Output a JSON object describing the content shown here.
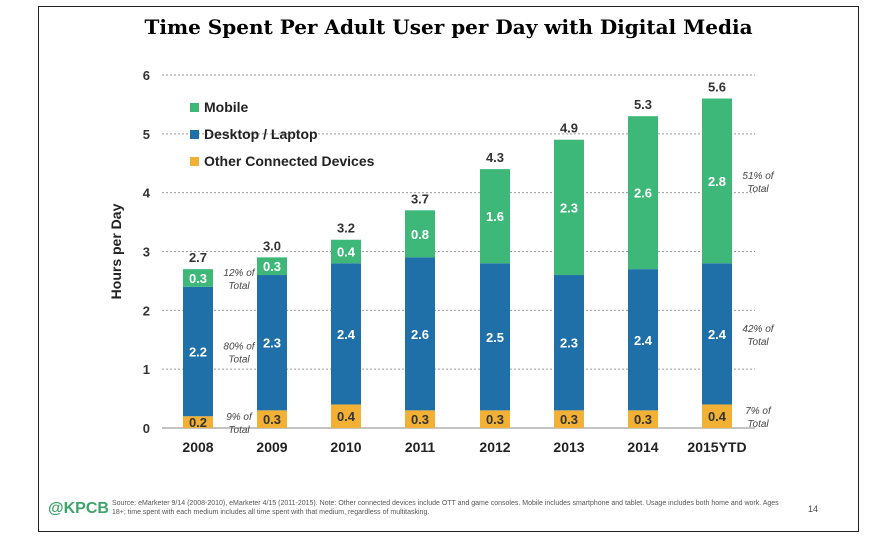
{
  "chart_data": {
    "type": "bar",
    "stacked": true,
    "title": "Time Spent Per Adult User per Day with Digital Media",
    "xlabel": "",
    "ylabel": "Hours per Day",
    "ylim": [
      0,
      6
    ],
    "yticks": [
      "0",
      "1",
      "2",
      "3",
      "4",
      "5",
      "6"
    ],
    "grid": true,
    "categories": [
      "2008",
      "2009",
      "2010",
      "2011",
      "2012",
      "2013",
      "2014",
      "2015YTD"
    ],
    "series": [
      {
        "name": "Other Connected Devices",
        "color": "#f2b134",
        "values": [
          0.2,
          0.3,
          0.4,
          0.3,
          0.3,
          0.3,
          0.3,
          0.4
        ],
        "labels": [
          "0.2",
          "0.3",
          "0.4",
          "0.3",
          "0.3",
          "0.3",
          "0.3",
          "0.4"
        ]
      },
      {
        "name": "Desktop / Laptop",
        "color": "#1f6fa9",
        "values": [
          2.2,
          2.3,
          2.4,
          2.6,
          2.5,
          2.3,
          2.4,
          2.4
        ],
        "labels": [
          "2.2",
          "2.3",
          "2.4",
          "2.6",
          "2.5",
          "2.3",
          "2.4",
          "2.4"
        ]
      },
      {
        "name": "Mobile",
        "color": "#3db879",
        "values": [
          0.3,
          0.3,
          0.4,
          0.8,
          1.6,
          2.3,
          2.6,
          2.8
        ],
        "labels": [
          "0.3",
          "0.3",
          "0.4",
          "0.8",
          "1.6",
          "2.3",
          "2.6",
          "2.8"
        ]
      }
    ],
    "totals": [
      "2.7",
      "3.0",
      "3.2",
      "3.7",
      "4.3",
      "4.9",
      "5.3",
      "5.6"
    ],
    "legend_order": [
      "Mobile",
      "Desktop / Laptop",
      "Other Connected Devices"
    ],
    "legend_position": "top-left",
    "annotations": [
      {
        "text_line1": "12% of",
        "text_line2": "Total",
        "category": "2008",
        "series": "Mobile"
      },
      {
        "text_line1": "80% of",
        "text_line2": "Total",
        "category": "2008",
        "series": "Desktop / Laptop"
      },
      {
        "text_line1": "9% of",
        "text_line2": "Total",
        "category": "2008",
        "series": "Other Connected Devices"
      },
      {
        "text_line1": "51% of",
        "text_line2": "Total",
        "category": "2015YTD",
        "series": "Mobile"
      },
      {
        "text_line1": "42% of",
        "text_line2": "Total",
        "category": "2015YTD",
        "series": "Desktop / Laptop"
      },
      {
        "text_line1": "7% of",
        "text_line2": "Total",
        "category": "2015YTD",
        "series": "Other Connected Devices"
      }
    ]
  },
  "footer": {
    "logo": "@KPCB",
    "source": "Source: eMarketer 9/14 (2008-2010), eMarketer 4/15 (2011-2015). Note: Other connected devices include OTT and game consoles. Mobile includes smartphone and tablet. Usage includes both home and work. Ages 18+; time spent with each medium includes all time spent with that medium, regardless of multitasking.",
    "page": "14"
  }
}
